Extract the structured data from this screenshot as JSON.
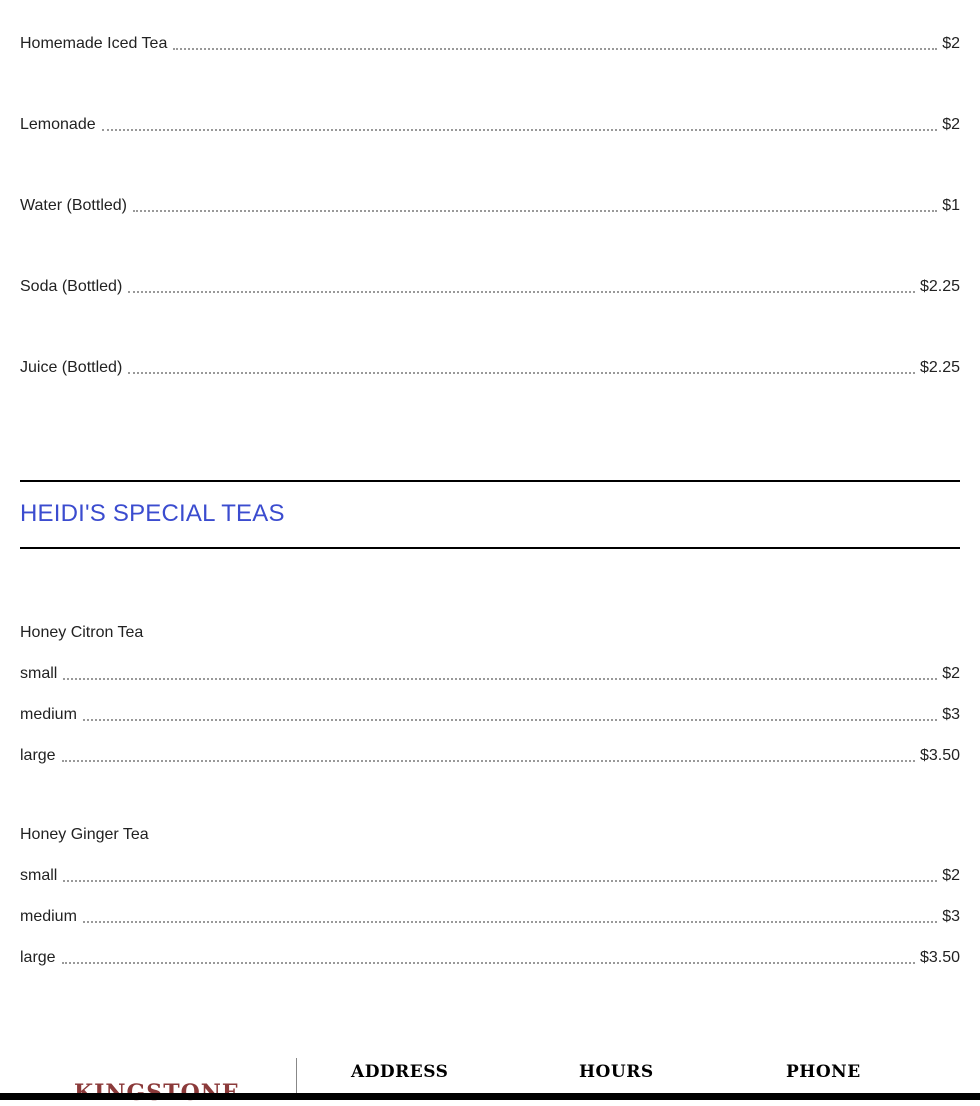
{
  "drinks": [
    {
      "name": "Homemade Iced Tea",
      "price": "$2"
    },
    {
      "name": "Lemonade",
      "price": "$2"
    },
    {
      "name": "Water (Bottled)",
      "price": "$1"
    },
    {
      "name": "Soda (Bottled)",
      "price": "$2.25"
    },
    {
      "name": "Juice (Bottled)",
      "price": "$2.25"
    }
  ],
  "special_section": {
    "title": "HEIDI'S SPECIAL TEAS",
    "title_color": "#3b4ccf",
    "groups": [
      {
        "name": "Honey Citron Tea",
        "sizes": [
          {
            "name": "small",
            "price": "$2"
          },
          {
            "name": "medium",
            "price": "$3"
          },
          {
            "name": "large",
            "price": "$3.50"
          }
        ]
      },
      {
        "name": "Honey Ginger Tea",
        "sizes": [
          {
            "name": "small",
            "price": "$2"
          },
          {
            "name": "medium",
            "price": "$3"
          },
          {
            "name": "large",
            "price": "$3.50"
          }
        ]
      }
    ]
  },
  "footer": {
    "logo": "KINGSTONE",
    "address_label": "ADDRESS",
    "hours_label": "HOURS",
    "phone_label": "PHONE"
  }
}
